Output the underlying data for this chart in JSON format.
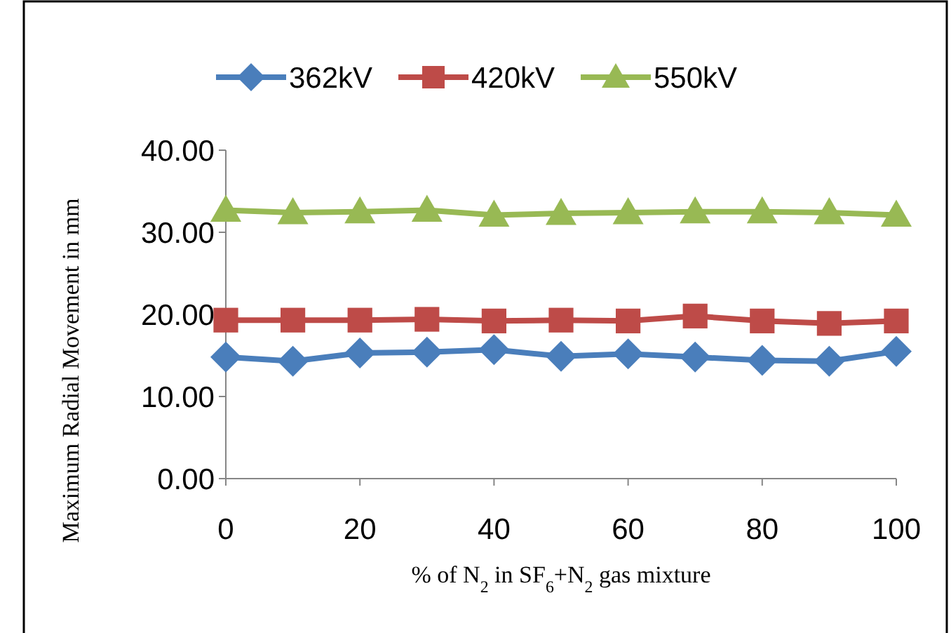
{
  "chart_data": {
    "type": "line",
    "xlabel": "% of N$_{2}$ in SF$_{6}$+N$_{2}$ gas mixture",
    "ylabel": "Maximum Radial Movement in mm",
    "x": [
      0,
      10,
      20,
      30,
      40,
      50,
      60,
      70,
      80,
      90,
      100
    ],
    "xlim": [
      0,
      100
    ],
    "xticks": [
      0,
      20,
      40,
      60,
      80,
      100
    ],
    "ylim": [
      0,
      40
    ],
    "yticks": [
      {
        "value": 0,
        "label": "0.00"
      },
      {
        "value": 10,
        "label": "10.00"
      },
      {
        "value": 20,
        "label": "20.00"
      },
      {
        "value": 30,
        "label": "30.00"
      },
      {
        "value": 40,
        "label": "40.00"
      }
    ],
    "grid": false,
    "legend": "top",
    "series": [
      {
        "name": "362kV",
        "color": "#4a7ebb",
        "marker": "diamond",
        "values": [
          14.8,
          14.3,
          15.3,
          15.4,
          15.7,
          14.9,
          15.2,
          14.8,
          14.4,
          14.3,
          15.5
        ]
      },
      {
        "name": "420kV",
        "color": "#be4b48",
        "marker": "square",
        "values": [
          19.3,
          19.3,
          19.3,
          19.4,
          19.2,
          19.3,
          19.2,
          19.8,
          19.2,
          18.9,
          19.2
        ]
      },
      {
        "name": "550kV",
        "color": "#98b954",
        "marker": "triangle",
        "values": [
          32.7,
          32.4,
          32.5,
          32.7,
          32.1,
          32.3,
          32.4,
          32.5,
          32.5,
          32.4,
          32.1
        ]
      }
    ]
  }
}
